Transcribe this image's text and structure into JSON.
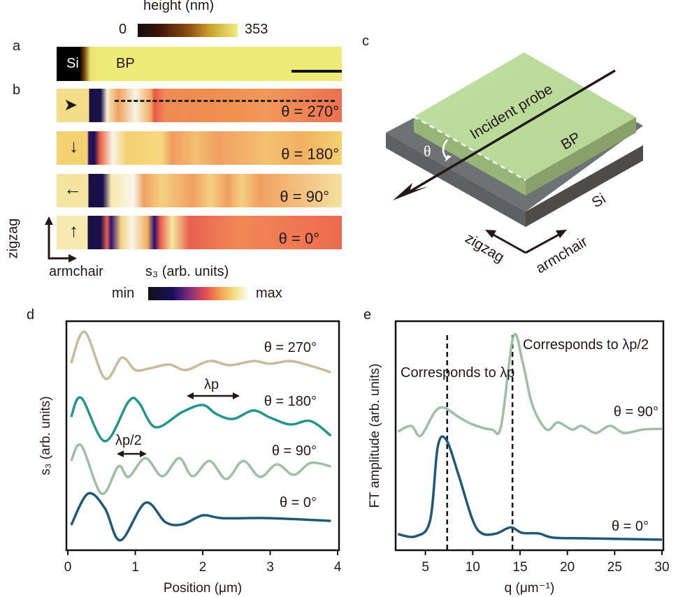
{
  "panel_labels": {
    "a": "a",
    "b": "b",
    "c": "c",
    "d": "d",
    "e": "e"
  },
  "height_colorbar": {
    "title": "height (nm)",
    "min": "0",
    "max": "353"
  },
  "panel_a": {
    "si": "Si",
    "bp": "BP"
  },
  "panel_b": {
    "strips": [
      {
        "theta": "θ = 270°",
        "arrow": "right"
      },
      {
        "theta": "θ = 180°",
        "arrow": "down"
      },
      {
        "theta": "θ = 90°",
        "arrow": "left"
      },
      {
        "theta": "θ = 0°",
        "arrow": "up"
      }
    ],
    "axis_zigzag": "zigzag",
    "axis_armchair": "armchair"
  },
  "s3_colorbar": {
    "title": "s₃ (arb. units)",
    "min": "min",
    "max": "max"
  },
  "panel_c": {
    "probe": "Incident probe",
    "bp": "BP",
    "si": "Si",
    "theta": "θ",
    "zigzag": "zigzag",
    "armchair": "armchair"
  },
  "colors": {
    "c270": "#cbb99c",
    "c180": "#23958f",
    "c90": "#9dbfa2",
    "c0": "#1f5879",
    "bp_green": "#b8d898",
    "si_gray": "#6b6d6e"
  },
  "chart_data": [
    {
      "type": "line",
      "xlabel": "Position (μm)",
      "ylabel": "s₃ (arb. units)",
      "xlim": [
        0,
        4
      ],
      "ylim": [
        0,
        10
      ],
      "xticks": [
        "0",
        "1",
        "2",
        "3",
        "4"
      ],
      "annotations": [
        "λp",
        "λp/2"
      ],
      "series": [
        {
          "name": "θ = 270°",
          "color": "#cbb99c",
          "x": [
            0.05,
            0.25,
            0.55,
            0.8,
            1.0,
            1.2,
            1.5,
            1.75,
            2.1,
            2.4,
            2.75,
            3.0,
            3.3,
            3.6,
            3.9
          ],
          "y": [
            8.17,
            9.54,
            7.5,
            8.41,
            7.87,
            7.93,
            8.11,
            7.87,
            8.26,
            8.08,
            8.26,
            8.14,
            8.26,
            8.05,
            7.77
          ]
        },
        {
          "name": "θ = 180°",
          "color": "#23958f",
          "x": [
            0.05,
            0.2,
            0.55,
            0.9,
            1.05,
            1.3,
            1.7,
            2.0,
            2.2,
            2.45,
            2.75,
            3.0,
            3.3,
            3.6,
            3.9
          ],
          "y": [
            5.82,
            6.65,
            4.76,
            6.49,
            6.46,
            5.37,
            6.04,
            6.34,
            5.95,
            5.73,
            6.1,
            5.79,
            5.49,
            5.64,
            5.0
          ]
        },
        {
          "name": "θ = 90°",
          "color": "#9dbfa2",
          "x": [
            0.05,
            0.2,
            0.5,
            0.75,
            0.9,
            1.15,
            1.4,
            1.65,
            1.85,
            2.1,
            2.35,
            2.6,
            2.85,
            3.1,
            3.35,
            3.6,
            3.9
          ],
          "y": [
            3.9,
            4.57,
            2.47,
            3.66,
            3.2,
            4.02,
            3.23,
            4.02,
            3.23,
            3.9,
            3.11,
            3.9,
            3.2,
            3.75,
            3.29,
            3.81,
            3.66
          ]
        },
        {
          "name": "θ = 0°",
          "color": "#1f5879",
          "x": [
            0.05,
            0.3,
            0.55,
            0.78,
            1.15,
            1.45,
            1.7,
            2.0,
            2.3,
            3.0,
            3.9
          ],
          "y": [
            1.1,
            2.47,
            1.83,
            0.43,
            2.07,
            1.22,
            1.13,
            1.52,
            1.4,
            1.4,
            1.28
          ]
        }
      ]
    },
    {
      "type": "line",
      "xlabel": "q (μm⁻¹)",
      "ylabel": "FT amplitude (arb. units)",
      "xlim": [
        2,
        30
      ],
      "ylim": [
        0,
        10
      ],
      "xticks": [
        "5",
        "10",
        "15",
        "20",
        "25",
        "30"
      ],
      "annotations": [
        "Corresponds to λp",
        "Corresponds to λp/2"
      ],
      "dashed_lines_q": [
        7.3,
        14.2
      ],
      "series": [
        {
          "name": "θ = 90°",
          "color": "#9dbfa2",
          "x": [
            2.1,
            3.5,
            4.5,
            6,
            7,
            8.5,
            10,
            12,
            13,
            14.3,
            15.3,
            16.3,
            17.8,
            19,
            20.5,
            21.5,
            23,
            24.5,
            26,
            28,
            30
          ],
          "y": [
            5.18,
            5.43,
            5.0,
            6.04,
            6.22,
            5.82,
            5.49,
            5.27,
            5.43,
            9.33,
            8.17,
            6.34,
            5.27,
            5.58,
            5.27,
            5.43,
            5.12,
            5.43,
            5.12,
            5.27,
            5.3
          ]
        },
        {
          "name": "θ = 0°",
          "color": "#1f5879",
          "x": [
            2.1,
            4,
            5.5,
            6.3,
            7.2,
            8.5,
            10,
            11,
            12.5,
            14,
            15.2,
            17,
            18.5,
            22,
            30
          ],
          "y": [
            0.7,
            0.61,
            1.31,
            4.51,
            4.82,
            3.29,
            1.31,
            0.73,
            0.73,
            1.0,
            0.76,
            0.73,
            0.55,
            0.52,
            0.46
          ]
        }
      ]
    }
  ]
}
